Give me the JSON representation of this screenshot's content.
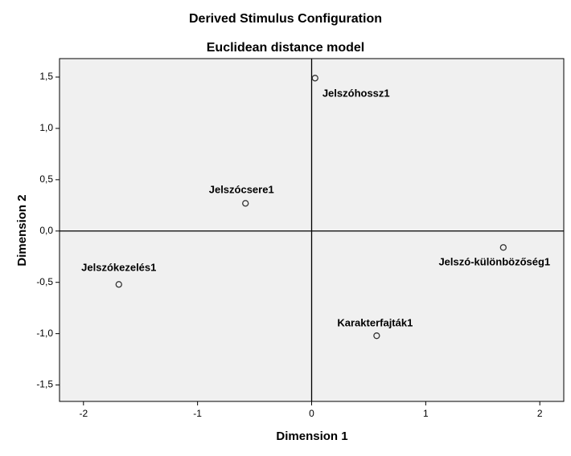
{
  "chart_data": {
    "type": "scatter",
    "title": "Derived Stimulus Configuration",
    "subtitle": "Euclidean distance model",
    "x_label": "Dimension 1",
    "y_label": "Dimension 2",
    "point_labels": [
      "Jelszóhossz1",
      "Jelszócsere1",
      "Jelszó-különbözőség1",
      "Jelszókezelés1",
      "Karakterfajták1"
    ],
    "x": [
      0.03,
      -0.58,
      1.68,
      -1.69,
      0.57
    ],
    "values": [
      1.49,
      0.27,
      -0.16,
      -0.52,
      -1.02
    ],
    "marker_color": "#333333",
    "plot_background": "#f0f0f0",
    "xlim": [
      -2.21,
      2.21
    ],
    "ylim": [
      -1.66,
      1.68
    ],
    "xticks": [
      -2,
      -1,
      0,
      1,
      2
    ],
    "yticks": [
      {
        "value": 1.5,
        "label": "1,5"
      },
      {
        "value": 1.0,
        "label": "1,0"
      },
      {
        "value": 0.5,
        "label": "0,5"
      },
      {
        "value": 0.0,
        "label": "0,0"
      },
      {
        "value": -0.5,
        "label": "-0,5"
      },
      {
        "value": -1.0,
        "label": "-1,0"
      },
      {
        "value": -1.5,
        "label": "-1,5"
      }
    ],
    "grid": false
  }
}
